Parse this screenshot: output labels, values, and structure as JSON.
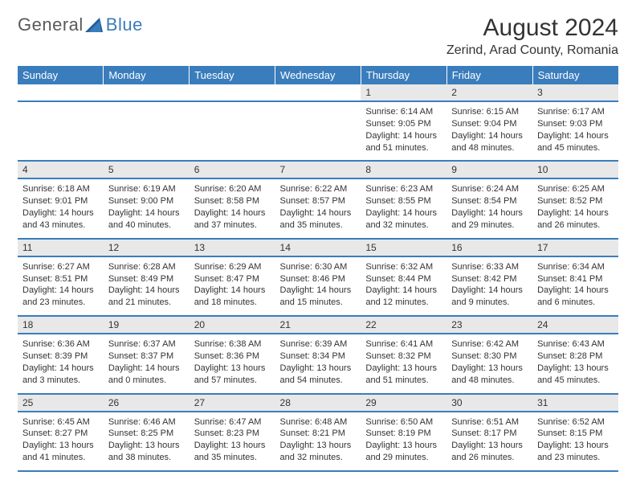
{
  "logo": {
    "text1": "General",
    "text2": "Blue"
  },
  "title": "August 2024",
  "location": "Zerind, Arad County, Romania",
  "colors": {
    "header_bg": "#3a7dbc",
    "daynum_bg": "#e8e8e8",
    "text": "#333333"
  },
  "weekdays": [
    "Sunday",
    "Monday",
    "Tuesday",
    "Wednesday",
    "Thursday",
    "Friday",
    "Saturday"
  ],
  "weeks": [
    {
      "days": [
        {
          "n": "",
          "sr": "",
          "ss": "",
          "dl": ""
        },
        {
          "n": "",
          "sr": "",
          "ss": "",
          "dl": ""
        },
        {
          "n": "",
          "sr": "",
          "ss": "",
          "dl": ""
        },
        {
          "n": "",
          "sr": "",
          "ss": "",
          "dl": ""
        },
        {
          "n": "1",
          "sr": "Sunrise: 6:14 AM",
          "ss": "Sunset: 9:05 PM",
          "dl": "Daylight: 14 hours and 51 minutes."
        },
        {
          "n": "2",
          "sr": "Sunrise: 6:15 AM",
          "ss": "Sunset: 9:04 PM",
          "dl": "Daylight: 14 hours and 48 minutes."
        },
        {
          "n": "3",
          "sr": "Sunrise: 6:17 AM",
          "ss": "Sunset: 9:03 PM",
          "dl": "Daylight: 14 hours and 45 minutes."
        }
      ]
    },
    {
      "days": [
        {
          "n": "4",
          "sr": "Sunrise: 6:18 AM",
          "ss": "Sunset: 9:01 PM",
          "dl": "Daylight: 14 hours and 43 minutes."
        },
        {
          "n": "5",
          "sr": "Sunrise: 6:19 AM",
          "ss": "Sunset: 9:00 PM",
          "dl": "Daylight: 14 hours and 40 minutes."
        },
        {
          "n": "6",
          "sr": "Sunrise: 6:20 AM",
          "ss": "Sunset: 8:58 PM",
          "dl": "Daylight: 14 hours and 37 minutes."
        },
        {
          "n": "7",
          "sr": "Sunrise: 6:22 AM",
          "ss": "Sunset: 8:57 PM",
          "dl": "Daylight: 14 hours and 35 minutes."
        },
        {
          "n": "8",
          "sr": "Sunrise: 6:23 AM",
          "ss": "Sunset: 8:55 PM",
          "dl": "Daylight: 14 hours and 32 minutes."
        },
        {
          "n": "9",
          "sr": "Sunrise: 6:24 AM",
          "ss": "Sunset: 8:54 PM",
          "dl": "Daylight: 14 hours and 29 minutes."
        },
        {
          "n": "10",
          "sr": "Sunrise: 6:25 AM",
          "ss": "Sunset: 8:52 PM",
          "dl": "Daylight: 14 hours and 26 minutes."
        }
      ]
    },
    {
      "days": [
        {
          "n": "11",
          "sr": "Sunrise: 6:27 AM",
          "ss": "Sunset: 8:51 PM",
          "dl": "Daylight: 14 hours and 23 minutes."
        },
        {
          "n": "12",
          "sr": "Sunrise: 6:28 AM",
          "ss": "Sunset: 8:49 PM",
          "dl": "Daylight: 14 hours and 21 minutes."
        },
        {
          "n": "13",
          "sr": "Sunrise: 6:29 AM",
          "ss": "Sunset: 8:47 PM",
          "dl": "Daylight: 14 hours and 18 minutes."
        },
        {
          "n": "14",
          "sr": "Sunrise: 6:30 AM",
          "ss": "Sunset: 8:46 PM",
          "dl": "Daylight: 14 hours and 15 minutes."
        },
        {
          "n": "15",
          "sr": "Sunrise: 6:32 AM",
          "ss": "Sunset: 8:44 PM",
          "dl": "Daylight: 14 hours and 12 minutes."
        },
        {
          "n": "16",
          "sr": "Sunrise: 6:33 AM",
          "ss": "Sunset: 8:42 PM",
          "dl": "Daylight: 14 hours and 9 minutes."
        },
        {
          "n": "17",
          "sr": "Sunrise: 6:34 AM",
          "ss": "Sunset: 8:41 PM",
          "dl": "Daylight: 14 hours and 6 minutes."
        }
      ]
    },
    {
      "days": [
        {
          "n": "18",
          "sr": "Sunrise: 6:36 AM",
          "ss": "Sunset: 8:39 PM",
          "dl": "Daylight: 14 hours and 3 minutes."
        },
        {
          "n": "19",
          "sr": "Sunrise: 6:37 AM",
          "ss": "Sunset: 8:37 PM",
          "dl": "Daylight: 14 hours and 0 minutes."
        },
        {
          "n": "20",
          "sr": "Sunrise: 6:38 AM",
          "ss": "Sunset: 8:36 PM",
          "dl": "Daylight: 13 hours and 57 minutes."
        },
        {
          "n": "21",
          "sr": "Sunrise: 6:39 AM",
          "ss": "Sunset: 8:34 PM",
          "dl": "Daylight: 13 hours and 54 minutes."
        },
        {
          "n": "22",
          "sr": "Sunrise: 6:41 AM",
          "ss": "Sunset: 8:32 PM",
          "dl": "Daylight: 13 hours and 51 minutes."
        },
        {
          "n": "23",
          "sr": "Sunrise: 6:42 AM",
          "ss": "Sunset: 8:30 PM",
          "dl": "Daylight: 13 hours and 48 minutes."
        },
        {
          "n": "24",
          "sr": "Sunrise: 6:43 AM",
          "ss": "Sunset: 8:28 PM",
          "dl": "Daylight: 13 hours and 45 minutes."
        }
      ]
    },
    {
      "days": [
        {
          "n": "25",
          "sr": "Sunrise: 6:45 AM",
          "ss": "Sunset: 8:27 PM",
          "dl": "Daylight: 13 hours and 41 minutes."
        },
        {
          "n": "26",
          "sr": "Sunrise: 6:46 AM",
          "ss": "Sunset: 8:25 PM",
          "dl": "Daylight: 13 hours and 38 minutes."
        },
        {
          "n": "27",
          "sr": "Sunrise: 6:47 AM",
          "ss": "Sunset: 8:23 PM",
          "dl": "Daylight: 13 hours and 35 minutes."
        },
        {
          "n": "28",
          "sr": "Sunrise: 6:48 AM",
          "ss": "Sunset: 8:21 PM",
          "dl": "Daylight: 13 hours and 32 minutes."
        },
        {
          "n": "29",
          "sr": "Sunrise: 6:50 AM",
          "ss": "Sunset: 8:19 PM",
          "dl": "Daylight: 13 hours and 29 minutes."
        },
        {
          "n": "30",
          "sr": "Sunrise: 6:51 AM",
          "ss": "Sunset: 8:17 PM",
          "dl": "Daylight: 13 hours and 26 minutes."
        },
        {
          "n": "31",
          "sr": "Sunrise: 6:52 AM",
          "ss": "Sunset: 8:15 PM",
          "dl": "Daylight: 13 hours and 23 minutes."
        }
      ]
    }
  ]
}
